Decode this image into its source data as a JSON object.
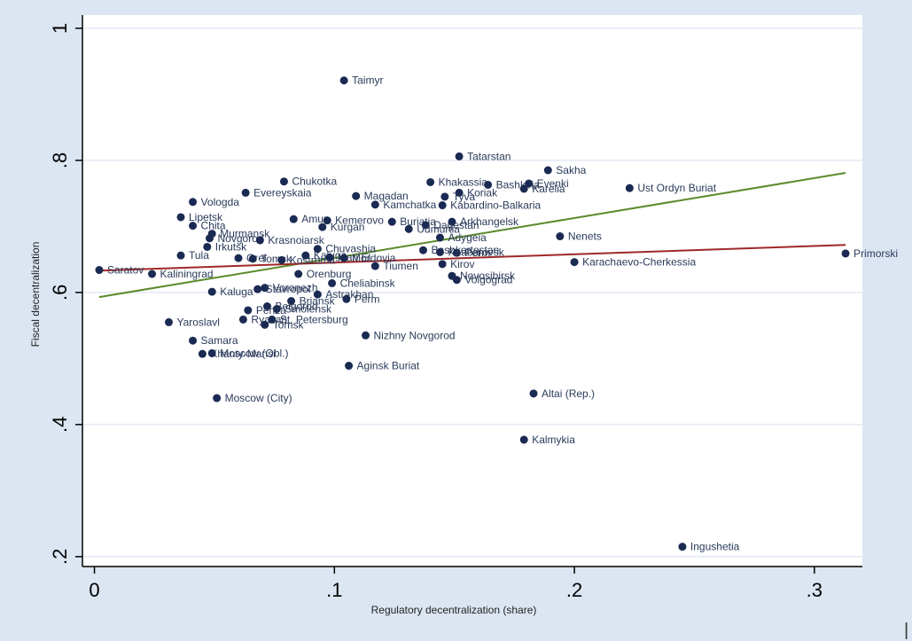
{
  "chart_data": {
    "type": "scatter",
    "xlabel": "Regulatory decentralization (share)",
    "ylabel": "Fiscal decentralization",
    "xlim": [
      -0.005,
      0.32
    ],
    "ylim": [
      0.185,
      1.02
    ],
    "xticks": [
      0,
      0.1,
      0.2,
      0.3
    ],
    "xtick_labels": [
      "0",
      ".1",
      ".2",
      ".3"
    ],
    "yticks": [
      0.2,
      0.4,
      0.6,
      0.8,
      1.0
    ],
    "ytick_labels": [
      ".2",
      ".4",
      ".6",
      ".8",
      "1"
    ],
    "grid": "horizontal",
    "colors": {
      "background": "#dce6f2",
      "plot_area": "#ffffff",
      "marker": "#1a2a52",
      "label": "#2a3a5a",
      "fit_line_green": "#5b8a2a",
      "fit_line_red": "#a02828",
      "grid": "#e8eef6"
    },
    "fit_lines": [
      {
        "x": [
          0.002,
          0.313
        ],
        "y": [
          0.593,
          0.781
        ],
        "color": "#5b8a2a"
      },
      {
        "x": [
          0.002,
          0.313
        ],
        "y": [
          0.633,
          0.672
        ],
        "color": "#a02828"
      }
    ],
    "points": [
      {
        "label": "Taimyr",
        "x": 0.104,
        "y": 0.921
      },
      {
        "label": "Tatarstan",
        "x": 0.152,
        "y": 0.806
      },
      {
        "label": "Sakha",
        "x": 0.189,
        "y": 0.785
      },
      {
        "label": "Chukotka",
        "x": 0.079,
        "y": 0.768
      },
      {
        "label": "Khakassia",
        "x": 0.14,
        "y": 0.767
      },
      {
        "label": "Bashkiria",
        "x": 0.164,
        "y": 0.763
      },
      {
        "label": "Evenki",
        "x": 0.181,
        "y": 0.765
      },
      {
        "label": "Karelia",
        "x": 0.179,
        "y": 0.757
      },
      {
        "label": "Ust Ordyn Buriat",
        "x": 0.223,
        "y": 0.758
      },
      {
        "label": "Evereyskaia",
        "x": 0.063,
        "y": 0.751
      },
      {
        "label": "Magadan",
        "x": 0.109,
        "y": 0.746
      },
      {
        "label": "Koriak",
        "x": 0.152,
        "y": 0.751
      },
      {
        "label": "Tyva",
        "x": 0.146,
        "y": 0.745
      },
      {
        "label": "Vologda",
        "x": 0.041,
        "y": 0.737
      },
      {
        "label": "Kamchatka",
        "x": 0.117,
        "y": 0.733
      },
      {
        "label": "Kabardino-Balkaria",
        "x": 0.145,
        "y": 0.732
      },
      {
        "label": "Lipetsk",
        "x": 0.036,
        "y": 0.714
      },
      {
        "label": "Amur",
        "x": 0.083,
        "y": 0.711
      },
      {
        "label": "Kemerovo",
        "x": 0.097,
        "y": 0.709
      },
      {
        "label": "Kurgan",
        "x": 0.095,
        "y": 0.699
      },
      {
        "label": "Buriatia",
        "x": 0.124,
        "y": 0.707
      },
      {
        "label": "Arkhangelsk",
        "x": 0.149,
        "y": 0.707
      },
      {
        "label": "Dagestan",
        "x": 0.138,
        "y": 0.702
      },
      {
        "label": "Udmurtia",
        "x": 0.131,
        "y": 0.696
      },
      {
        "label": "Chita",
        "x": 0.041,
        "y": 0.701
      },
      {
        "label": "Murmansk",
        "x": 0.049,
        "y": 0.689
      },
      {
        "label": "Novgorod",
        "x": 0.048,
        "y": 0.682
      },
      {
        "label": "Nenets",
        "x": 0.194,
        "y": 0.685
      },
      {
        "label": "Krasnoiarsk",
        "x": 0.069,
        "y": 0.679
      },
      {
        "label": "Adygeia",
        "x": 0.144,
        "y": 0.683
      },
      {
        "label": "Irkutsk",
        "x": 0.047,
        "y": 0.669
      },
      {
        "label": "Chuvashia",
        "x": 0.093,
        "y": 0.666
      },
      {
        "label": "Bashkortostan",
        "x": 0.137,
        "y": 0.664
      },
      {
        "label": "Perm",
        "x": 0.151,
        "y": 0.66
      },
      {
        "label": "Khabarovsk",
        "x": 0.144,
        "y": 0.661
      },
      {
        "label": "Primorski",
        "x": 0.313,
        "y": 0.659
      },
      {
        "label": "Tula",
        "x": 0.036,
        "y": 0.656
      },
      {
        "label": "Orel",
        "x": 0.06,
        "y": 0.652
      },
      {
        "label": "Tomsk",
        "x": 0.066,
        "y": 0.651
      },
      {
        "label": "Kostroma",
        "x": 0.078,
        "y": 0.649
      },
      {
        "label": "Kaluga",
        "x": 0.088,
        "y": 0.656
      },
      {
        "label": "Mari El",
        "x": 0.098,
        "y": 0.653
      },
      {
        "label": "Mordovia",
        "x": 0.104,
        "y": 0.652
      },
      {
        "label": "Karachaevo-Cherkessia",
        "x": 0.2,
        "y": 0.646
      },
      {
        "label": "Kirov",
        "x": 0.145,
        "y": 0.643
      },
      {
        "label": "Tiumen",
        "x": 0.117,
        "y": 0.64
      },
      {
        "label": "Saratov",
        "x": 0.002,
        "y": 0.634
      },
      {
        "label": "Kaliningrad",
        "x": 0.024,
        "y": 0.628
      },
      {
        "label": "Orenburg",
        "x": 0.085,
        "y": 0.628
      },
      {
        "label": "Novosibirsk",
        "x": 0.149,
        "y": 0.625
      },
      {
        "label": "Volgograd",
        "x": 0.151,
        "y": 0.619
      },
      {
        "label": "Cheliabinsk",
        "x": 0.099,
        "y": 0.614
      },
      {
        "label": "Voronezh",
        "x": 0.071,
        "y": 0.607
      },
      {
        "label": "Kaluga",
        "x": 0.049,
        "y": 0.601
      },
      {
        "label": "Stavropol",
        "x": 0.068,
        "y": 0.605
      },
      {
        "label": "Astrakhan",
        "x": 0.093,
        "y": 0.597
      },
      {
        "label": "Perm",
        "x": 0.105,
        "y": 0.59
      },
      {
        "label": "Briansk",
        "x": 0.082,
        "y": 0.587
      },
      {
        "label": "Belgorod",
        "x": 0.072,
        "y": 0.579
      },
      {
        "label": "Smolensk",
        "x": 0.076,
        "y": 0.575
      },
      {
        "label": "Penza",
        "x": 0.064,
        "y": 0.573
      },
      {
        "label": "Ryazan",
        "x": 0.062,
        "y": 0.559
      },
      {
        "label": "St. Petersburg",
        "x": 0.074,
        "y": 0.559
      },
      {
        "label": "Tomsk",
        "x": 0.071,
        "y": 0.551
      },
      {
        "label": "Yaroslavl",
        "x": 0.031,
        "y": 0.555
      },
      {
        "label": "Nizhny Novgorod",
        "x": 0.113,
        "y": 0.535
      },
      {
        "label": "Samara",
        "x": 0.041,
        "y": 0.527
      },
      {
        "label": "Khanty-Mansi",
        "x": 0.045,
        "y": 0.507
      },
      {
        "label": "Moscow (Obl.)",
        "x": 0.049,
        "y": 0.508
      },
      {
        "label": "Aginsk Buriat",
        "x": 0.106,
        "y": 0.489
      },
      {
        "label": "Altai (Rep.)",
        "x": 0.183,
        "y": 0.447
      },
      {
        "label": "Moscow (City)",
        "x": 0.051,
        "y": 0.44
      },
      {
        "label": "Kalmykia",
        "x": 0.179,
        "y": 0.377
      },
      {
        "label": "Ingushetia",
        "x": 0.245,
        "y": 0.215
      }
    ]
  },
  "stray_mark": "|"
}
